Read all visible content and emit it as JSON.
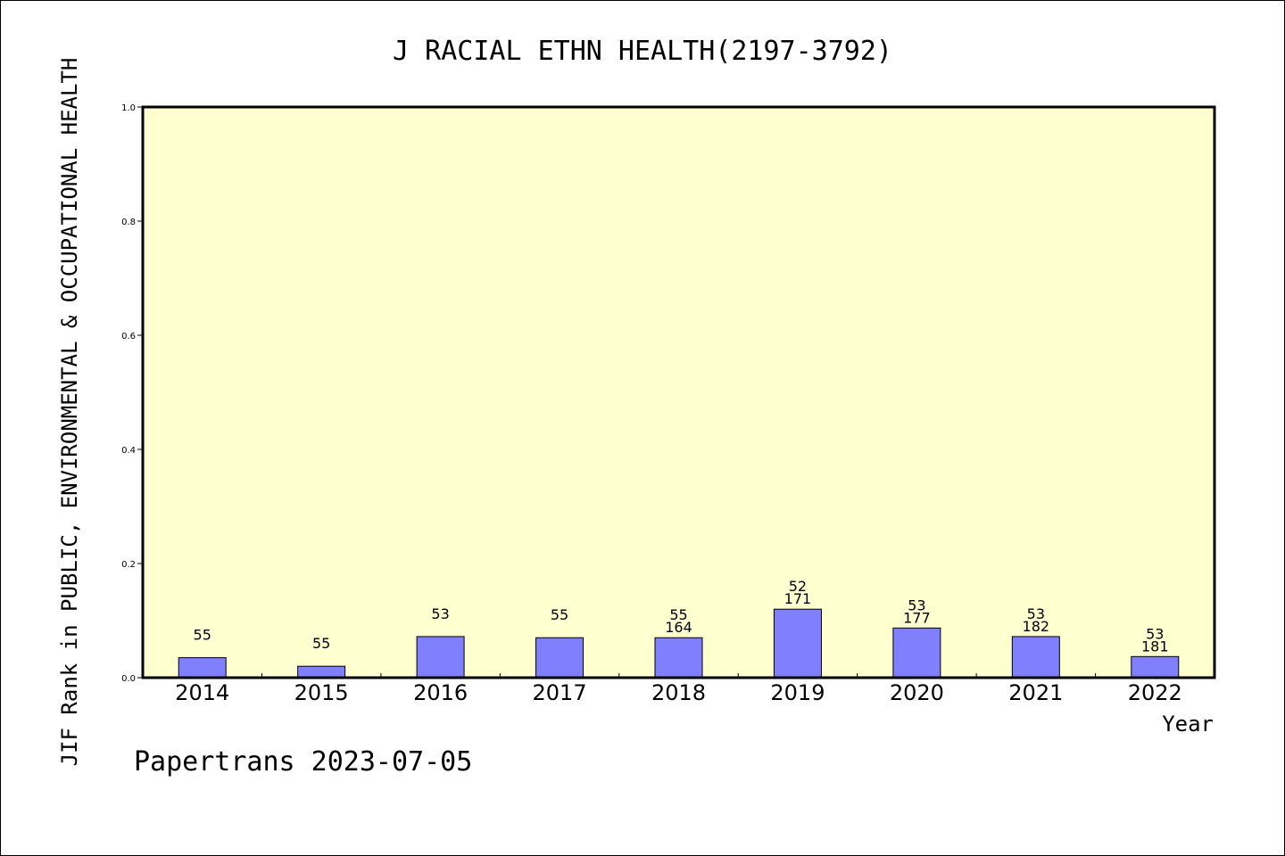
{
  "chart_data": {
    "type": "bar",
    "title": "J RACIAL ETHN HEALTH(2197-3792)",
    "ylabel": "JIF Rank in PUBLIC, ENVIRONMENTAL & OCCUPATIONAL HEALTH",
    "xlabel": "Year",
    "ylim": [
      0,
      1.0
    ],
    "yticks": [
      "0.0",
      "0.2",
      "0.4",
      "0.6",
      "0.8",
      "1.0"
    ],
    "ytick_values": [
      0,
      0.2,
      0.4,
      0.6,
      0.8,
      1.0
    ],
    "categories": [
      "2014",
      "2015",
      "2016",
      "2017",
      "2018",
      "2019",
      "2020",
      "2021",
      "2022"
    ],
    "values": [
      0.035,
      0.02,
      0.072,
      0.07,
      0.07,
      0.12,
      0.087,
      0.072,
      0.037
    ],
    "bar_labels_top": [
      "55",
      "55",
      "53",
      "55",
      "55",
      "52",
      "53",
      "53",
      "53"
    ],
    "bar_labels_bottom": [
      "",
      "",
      "",
      "",
      "164",
      "171",
      "177",
      "182",
      "181"
    ],
    "grid": false,
    "plot_background": "#ffffd0",
    "bar_color": "#8080ff"
  },
  "footer": {
    "credit": "Papertrans 2023-07-05"
  }
}
